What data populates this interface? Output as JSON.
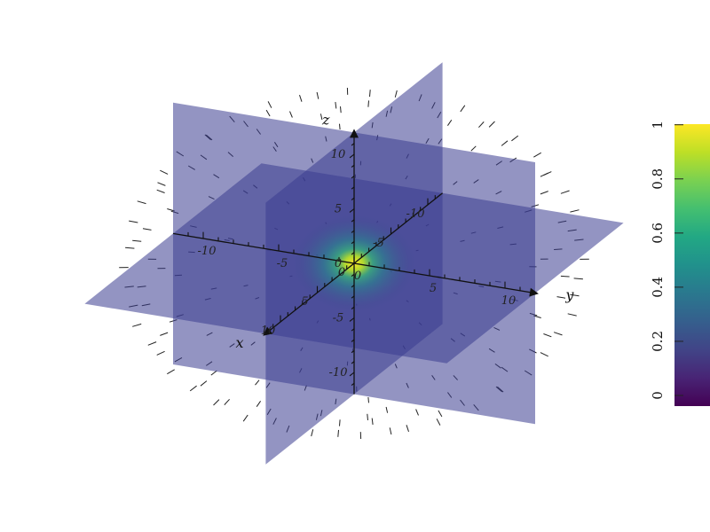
{
  "chart_data": {
    "type": "3d-volume-slices",
    "axes": {
      "x": {
        "label": "x",
        "range": [
          -12,
          12
        ],
        "ticks": [
          -10,
          -5,
          0,
          5,
          10
        ]
      },
      "y": {
        "label": "y",
        "range": [
          -12,
          12
        ],
        "ticks": [
          -10,
          -5,
          0,
          5,
          10
        ]
      },
      "z": {
        "label": "z",
        "range": [
          -12,
          12
        ],
        "ticks": [
          -10,
          -5,
          0,
          5,
          10
        ]
      }
    },
    "slices": [
      "x=0",
      "y=0",
      "z=0"
    ],
    "field": "radially decaying scalar, peak 1 at origin",
    "slice_color": "#3a3c8f",
    "slice_opacity": 0.55,
    "vectors": "arrow field on spherical grid pointing toward origin",
    "colorbar": {
      "colormap": "viridis",
      "range": [
        0,
        1
      ],
      "ticks": [
        "0",
        "0.2",
        "0.4",
        "0.6",
        "0.8",
        "1"
      ]
    }
  }
}
